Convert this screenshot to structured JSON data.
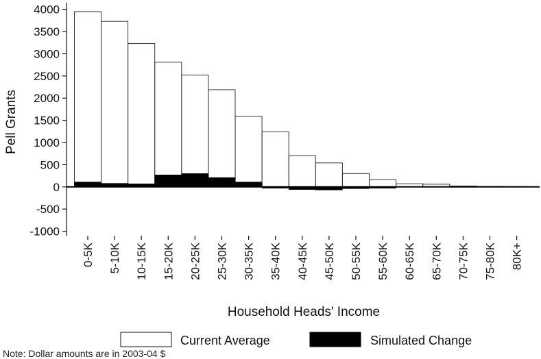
{
  "chart_data": {
    "type": "bar",
    "title": "",
    "xlabel": "Household Heads' Income",
    "ylabel": "Pell Grants",
    "ylim": [
      -1100,
      4150
    ],
    "yticks": [
      -1000,
      -500,
      0,
      500,
      1000,
      1500,
      2000,
      2500,
      3000,
      3500,
      4000
    ],
    "categories": [
      "0-5K",
      "5-10K",
      "10-15K",
      "15-20K",
      "20-25K",
      "25-30K",
      "30-35K",
      "35-40K",
      "40-45K",
      "45-50K",
      "50-55K",
      "55-60K",
      "60-65K",
      "65-70K",
      "70-75K",
      "75-80K",
      "80K+"
    ],
    "series": [
      {
        "name": "Current Average",
        "color": "#ffffff",
        "values": [
          3950,
          3730,
          3230,
          2810,
          2520,
          2190,
          1590,
          1240,
          700,
          540,
          300,
          160,
          70,
          60,
          20,
          10,
          5
        ]
      },
      {
        "name": "Simulated Change",
        "color": "#000000",
        "values": [
          110,
          80,
          70,
          270,
          300,
          210,
          110,
          -20,
          -60,
          -70,
          -40,
          -30,
          0,
          0,
          0,
          0,
          0
        ]
      }
    ],
    "legend": "bottom",
    "grid": false
  },
  "footnote": "Note: Dollar amounts are in 2003-04 $"
}
